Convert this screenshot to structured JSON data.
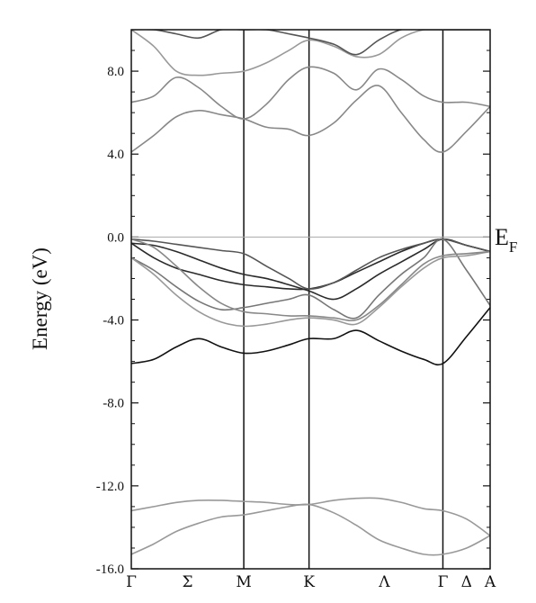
{
  "chart_data": {
    "type": "line",
    "title": "",
    "ylabel": "Energy (eV)",
    "ylim": [
      -16.0,
      10.0
    ],
    "yticks": [
      -16.0,
      -12.0,
      -8.0,
      -4.0,
      0.0,
      4.0,
      8.0
    ],
    "ytick_labels": [
      "-16.0",
      "-12.0",
      "-8.0",
      "-4.0",
      "0.0",
      "4.0",
      "8.0"
    ],
    "k_path": [
      {
        "label": "Γ",
        "k": 0.0
      },
      {
        "label": "Σ",
        "k": 0.5
      },
      {
        "label": "M",
        "k": 1.0
      },
      {
        "label": "K",
        "k": 1.58
      },
      {
        "label": "Λ",
        "k": 2.25
      },
      {
        "label": "Γ",
        "k": 2.77
      },
      {
        "label": "Δ",
        "k": 2.98
      },
      {
        "label": "A",
        "k": 3.19
      }
    ],
    "xlim": [
      0.0,
      3.19
    ],
    "vertical_lines_at_k": [
      1.0,
      1.58,
      2.77
    ],
    "fermi_level": {
      "energy": 0.0,
      "label": "E",
      "subscript": "F"
    },
    "series": [
      {
        "color": "#111111",
        "x": [
          0.0,
          0.2,
          0.4,
          0.6,
          0.8,
          1.0,
          1.2,
          1.4,
          1.58,
          1.8,
          2.0,
          2.2,
          2.4,
          2.6,
          2.77,
          2.98,
          3.19
        ],
        "y": [
          -6.1,
          -5.9,
          -5.3,
          -4.9,
          -5.3,
          -5.6,
          -5.5,
          -5.2,
          -4.9,
          -4.9,
          -4.5,
          -5.0,
          -5.5,
          -5.9,
          -6.1,
          -4.8,
          -3.4
        ]
      },
      {
        "color": "#2a2a2a",
        "x": [
          0.0,
          0.2,
          0.4,
          0.6,
          0.8,
          1.0,
          1.2,
          1.4,
          1.58,
          1.8,
          2.0,
          2.2,
          2.4,
          2.6,
          2.77,
          2.98,
          3.19
        ],
        "y": [
          -0.3,
          -1.0,
          -1.5,
          -1.8,
          -2.1,
          -2.3,
          -2.4,
          -2.5,
          -2.5,
          -2.2,
          -1.7,
          -1.2,
          -0.7,
          -0.3,
          -0.1,
          -0.4,
          -0.7
        ]
      },
      {
        "color": "#2a2a2a",
        "x": [
          0.0,
          0.2,
          0.4,
          0.6,
          0.8,
          1.0,
          1.2,
          1.4,
          1.58,
          1.8,
          2.0,
          2.2,
          2.4,
          2.6,
          2.77,
          2.98,
          3.19
        ],
        "y": [
          -0.3,
          -0.4,
          -0.7,
          -1.1,
          -1.5,
          -1.8,
          -2.0,
          -2.3,
          -2.6,
          -3.0,
          -2.5,
          -1.8,
          -1.2,
          -0.6,
          -0.1,
          -0.4,
          -0.7
        ]
      },
      {
        "color": "#555555",
        "x": [
          0.0,
          0.2,
          0.4,
          0.6,
          0.8,
          1.0,
          1.2,
          1.4,
          1.58,
          1.8,
          2.0,
          2.2,
          2.4,
          2.6,
          2.77,
          2.98,
          3.19
        ],
        "y": [
          -0.1,
          -0.2,
          -0.35,
          -0.5,
          -0.65,
          -0.8,
          -1.4,
          -2.0,
          -2.5,
          -2.2,
          -1.6,
          -1.0,
          -0.6,
          -0.3,
          -0.1,
          -0.4,
          -0.7
        ]
      },
      {
        "color": "#777777",
        "x": [
          0.0,
          0.2,
          0.4,
          0.6,
          0.8,
          1.0,
          1.2,
          1.4,
          1.58,
          1.8,
          2.0,
          2.2,
          2.4,
          2.6,
          2.77,
          2.98,
          3.19
        ],
        "y": [
          -1.0,
          -1.6,
          -2.4,
          -3.1,
          -3.5,
          -3.4,
          -3.2,
          -3.0,
          -2.8,
          -3.5,
          -3.9,
          -2.8,
          -1.8,
          -1.0,
          -0.1,
          -1.6,
          -3.3
        ]
      },
      {
        "color": "#999999",
        "x": [
          0.0,
          0.2,
          0.4,
          0.6,
          0.8,
          1.0,
          1.2,
          1.4,
          1.58,
          1.8,
          2.0,
          2.2,
          2.4,
          2.6,
          2.77,
          2.98,
          3.19
        ],
        "y": [
          -1.0,
          -1.8,
          -2.8,
          -3.6,
          -4.1,
          -4.3,
          -4.2,
          -4.0,
          -3.9,
          -4.0,
          -4.2,
          -3.4,
          -2.4,
          -1.5,
          -1.0,
          -0.9,
          -0.7
        ]
      },
      {
        "color": "#888888",
        "x": [
          0.0,
          0.2,
          0.4,
          0.6,
          0.8,
          1.0,
          1.2,
          1.4,
          1.58,
          1.8,
          2.0,
          2.2,
          2.4,
          2.6,
          2.77,
          2.98,
          3.19
        ],
        "y": [
          -0.1,
          -0.5,
          -1.4,
          -2.4,
          -3.2,
          -3.6,
          -3.7,
          -3.8,
          -3.8,
          -3.9,
          -4.0,
          -3.3,
          -2.3,
          -1.3,
          -0.9,
          -0.8,
          -0.7
        ]
      },
      {
        "color": "#888888",
        "x": [
          0.0,
          0.2,
          0.4,
          0.6,
          0.8,
          1.0,
          1.2,
          1.4,
          1.58,
          1.8,
          2.0,
          2.2,
          2.4,
          2.6,
          2.77,
          2.98,
          3.19
        ],
        "y": [
          4.1,
          4.9,
          5.8,
          6.1,
          5.9,
          5.7,
          5.3,
          5.2,
          4.9,
          5.5,
          6.6,
          7.3,
          6.0,
          4.7,
          4.1,
          5.1,
          6.3
        ]
      },
      {
        "color": "#888888",
        "x": [
          0.0,
          0.2,
          0.4,
          0.6,
          0.8,
          1.0,
          1.2,
          1.4,
          1.58,
          1.8,
          2.0,
          2.2,
          2.4,
          2.6,
          2.77,
          2.98,
          3.19
        ],
        "y": [
          6.5,
          6.8,
          7.7,
          7.2,
          6.3,
          5.7,
          6.4,
          7.6,
          8.2,
          7.9,
          7.1,
          8.1,
          7.6,
          6.8,
          6.5,
          6.5,
          6.3
        ]
      },
      {
        "color": "#999999",
        "x": [
          0.0,
          0.2,
          0.4,
          0.6,
          0.8,
          1.0,
          1.2,
          1.4,
          1.58,
          1.8,
          2.0,
          2.2,
          2.4,
          2.6,
          2.77,
          2.98,
          3.19
        ],
        "y": [
          10.0,
          9.2,
          8.0,
          7.8,
          7.9,
          8.0,
          8.4,
          9.0,
          9.5,
          9.2,
          8.7,
          8.8,
          9.6,
          10.0,
          10.0,
          10.0,
          10.0
        ]
      },
      {
        "color": "#555555",
        "x": [
          0.0,
          0.2,
          0.4,
          0.6,
          0.8,
          1.0,
          1.2,
          1.4,
          1.58,
          1.8,
          2.0,
          2.2,
          2.4,
          2.6,
          2.77,
          2.98,
          3.19
        ],
        "y": [
          10.0,
          10.0,
          9.8,
          9.6,
          10.0,
          10.0,
          10.0,
          9.8,
          9.6,
          9.3,
          8.8,
          9.5,
          10.0,
          10.0,
          10.0,
          10.0,
          10.0
        ]
      },
      {
        "color": "#999999",
        "x": [
          0.0,
          0.2,
          0.4,
          0.6,
          0.8,
          1.0,
          1.2,
          1.4,
          1.58,
          1.8,
          2.0,
          2.2,
          2.4,
          2.6,
          2.77,
          2.98,
          3.19
        ],
        "y": [
          -13.2,
          -13.0,
          -12.8,
          -12.7,
          -12.7,
          -12.75,
          -12.8,
          -12.9,
          -12.9,
          -12.7,
          -12.6,
          -12.6,
          -12.8,
          -13.1,
          -13.2,
          -13.6,
          -14.4
        ]
      },
      {
        "color": "#999999",
        "x": [
          0.0,
          0.2,
          0.4,
          0.6,
          0.8,
          1.0,
          1.2,
          1.4,
          1.58,
          1.8,
          2.0,
          2.2,
          2.4,
          2.6,
          2.77,
          2.98,
          3.19
        ],
        "y": [
          -15.3,
          -14.8,
          -14.2,
          -13.8,
          -13.5,
          -13.4,
          -13.2,
          -13.0,
          -12.9,
          -13.3,
          -13.9,
          -14.6,
          -15.0,
          -15.3,
          -15.3,
          -15.0,
          -14.4
        ]
      }
    ]
  }
}
